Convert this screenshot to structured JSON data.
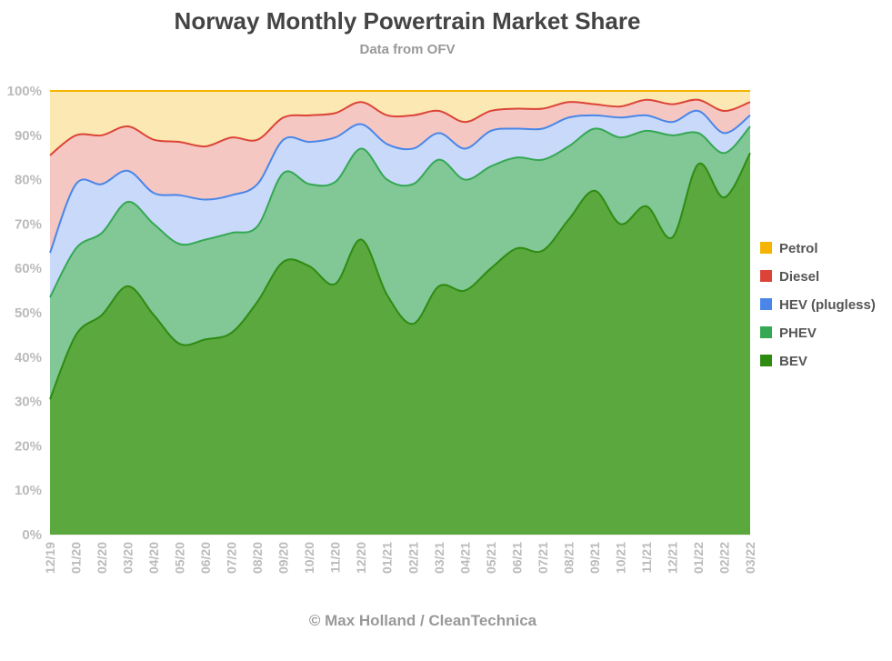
{
  "chart_data": {
    "type": "area",
    "stacked": true,
    "title": "Norway Monthly Powertrain Market Share",
    "subtitle": "Data from OFV",
    "credit": "© Max Holland / CleanTechnica",
    "xlabel": "",
    "ylabel": "",
    "ylim": [
      0,
      100
    ],
    "yticks": [
      "0%",
      "10%",
      "20%",
      "30%",
      "40%",
      "50%",
      "60%",
      "70%",
      "80%",
      "90%",
      "100%"
    ],
    "grid": true,
    "legend_position": "right",
    "categories": [
      "12/19",
      "01/20",
      "02/20",
      "03/20",
      "04/20",
      "05/20",
      "06/20",
      "07/20",
      "08/20",
      "09/20",
      "10/20",
      "11/20",
      "12/20",
      "01/21",
      "02/21",
      "03/21",
      "04/21",
      "05/21",
      "06/21",
      "07/21",
      "08/21",
      "09/21",
      "10/21",
      "11/21",
      "12/21",
      "01/22",
      "02/22",
      "03/22"
    ],
    "series": [
      {
        "name": "BEV",
        "color": "#2e8b12",
        "fill": "#5aa83e",
        "values": [
          30.5,
          45,
          49.5,
          56,
          49.5,
          43,
          44,
          45.5,
          52.5,
          61.5,
          60.5,
          56.5,
          66.5,
          54,
          47.5,
          56,
          55,
          60,
          64.5,
          64,
          71,
          77.5,
          70,
          74,
          67,
          83.5,
          76,
          86
        ]
      },
      {
        "name": "PHEV",
        "color": "#34a853",
        "fill": "#82c796",
        "values": [
          23,
          19.5,
          18.5,
          19,
          20.5,
          22.5,
          22.5,
          22.5,
          17,
          20,
          18.5,
          23,
          20.5,
          26,
          31.5,
          28.5,
          25,
          23,
          20.5,
          20.5,
          16.5,
          14,
          19.5,
          17,
          23,
          7,
          10,
          6
        ]
      },
      {
        "name": "HEV (plugless)",
        "color": "#4a86e8",
        "fill": "#c9d9f9",
        "values": [
          10,
          14.5,
          11,
          7,
          7,
          11,
          9,
          8.5,
          9.5,
          7.5,
          9.5,
          10,
          5.5,
          8,
          8,
          6,
          7,
          8,
          6.5,
          7,
          6.5,
          3,
          4.5,
          3.5,
          3,
          5,
          4.5,
          2.5
        ]
      },
      {
        "name": "Diesel",
        "color": "#db4437",
        "fill": "#f4c7c3",
        "values": [
          22,
          11,
          11,
          10,
          12,
          12,
          12,
          13,
          10,
          5,
          6,
          5.5,
          5,
          6.5,
          7.5,
          5,
          6,
          4.5,
          4.5,
          4.5,
          3.5,
          2.5,
          2.5,
          3.5,
          4,
          2.5,
          5,
          3
        ]
      },
      {
        "name": "Petrol",
        "color": "#f4b400",
        "fill": "#fce8b2",
        "values": [
          14.5,
          10,
          10,
          8,
          11,
          11.5,
          12.5,
          10.5,
          11,
          6,
          5.5,
          5,
          2.5,
          5.5,
          5.5,
          4.5,
          7,
          4.5,
          4,
          4,
          2.5,
          3,
          3.5,
          2,
          3,
          2,
          4.5,
          2.5
        ]
      }
    ]
  }
}
